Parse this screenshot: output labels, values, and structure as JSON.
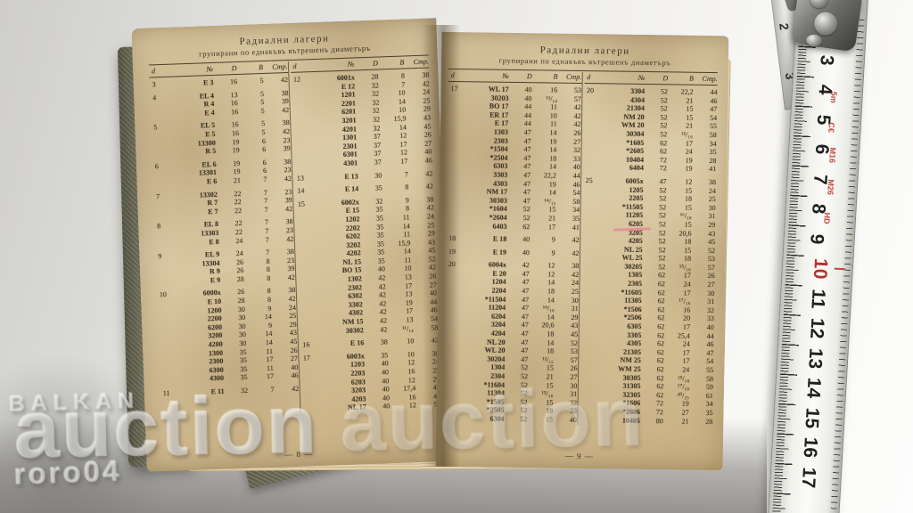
{
  "watermark": {
    "brand": "BALKAN",
    "word": "auction",
    "user": "roro04"
  },
  "pages": [
    {
      "title": "Радиални лагери",
      "subtitle": "групирани по еднакъвъ вътрешенъ диаметъръ",
      "columns": [
        "d",
        "№",
        "D",
        "B",
        "Стр."
      ],
      "page_number": "— 8 —",
      "left_rows": [
        [
          "3",
          "E 3",
          "16",
          "5",
          "42"
        ],
        [],
        [
          "4",
          "EL 4",
          "13",
          "5",
          "38"
        ],
        [
          "",
          "R 4",
          "16",
          "5",
          "39"
        ],
        [
          "",
          "E 4",
          "16",
          "5",
          "42"
        ],
        [],
        [
          "5",
          "EL 5",
          "16",
          "5",
          "38"
        ],
        [
          "",
          "E 5",
          "16",
          "5",
          "42"
        ],
        [
          "",
          "13300",
          "19",
          "6",
          "23"
        ],
        [
          "",
          "R 5",
          "19",
          "6",
          "39"
        ],
        [],
        [
          "6",
          "EL 6",
          "19",
          "6",
          "38"
        ],
        [
          "",
          "13301",
          "19",
          "6",
          "23"
        ],
        [
          "",
          "E 6",
          "21",
          "7",
          "42"
        ],
        [],
        [
          "7",
          "13302",
          "22",
          "7",
          "23"
        ],
        [
          "",
          "R 7",
          "22",
          "7",
          "39"
        ],
        [
          "",
          "E 7",
          "22",
          "7",
          "42"
        ],
        [],
        [
          "8",
          "EL 8",
          "22",
          "7",
          "38"
        ],
        [
          "",
          "13303",
          "22",
          "7",
          "23"
        ],
        [
          "",
          "E 8",
          "24",
          "7",
          "42"
        ],
        [],
        [
          "9",
          "EL 9",
          "24",
          "7",
          "38"
        ],
        [
          "",
          "13304",
          "26",
          "8",
          "23"
        ],
        [
          "",
          "R 9",
          "26",
          "8",
          "39"
        ],
        [
          "",
          "E 9",
          "28",
          "8",
          "42"
        ],
        [],
        [
          "10",
          "6000x",
          "26",
          "8",
          "38"
        ],
        [
          "",
          "E 10",
          "28",
          "8",
          "42"
        ],
        [
          "",
          "1200",
          "30",
          "9",
          "24"
        ],
        [
          "",
          "2200",
          "30",
          "14",
          "25"
        ],
        [
          "",
          "6200",
          "30",
          "9",
          "29"
        ],
        [
          "",
          "3200",
          "30",
          "14",
          "43"
        ],
        [
          "",
          "4200",
          "30",
          "14",
          "45"
        ],
        [
          "",
          "1300",
          "35",
          "11",
          "26"
        ],
        [
          "",
          "2300",
          "35",
          "17",
          "27"
        ],
        [
          "",
          "6300",
          "35",
          "11",
          "40"
        ],
        [
          "",
          "4300",
          "35",
          "17",
          "46"
        ],
        [],
        [
          "11",
          "E 11",
          "32",
          "7",
          "42"
        ]
      ],
      "right_rows": [
        [
          "12",
          "6001x",
          "28",
          "8",
          "38"
        ],
        [
          "",
          "E 12",
          "32",
          "7",
          "42"
        ],
        [
          "",
          "1201",
          "32",
          "10",
          "24"
        ],
        [
          "",
          "2201",
          "32",
          "14",
          "25"
        ],
        [
          "",
          "6201",
          "32",
          "10",
          "29"
        ],
        [
          "",
          "3201",
          "32",
          "15,9",
          "43"
        ],
        [
          "",
          "4201",
          "32",
          "14",
          "45"
        ],
        [
          "",
          "1301",
          "37",
          "12",
          "26"
        ],
        [
          "",
          "2301",
          "37",
          "17",
          "27"
        ],
        [
          "",
          "6301",
          "37",
          "12",
          "40"
        ],
        [
          "",
          "4301",
          "37",
          "17",
          "46"
        ],
        [],
        [
          "13",
          "E 13",
          "30",
          "7",
          "42"
        ],
        [],
        [
          "14",
          "E 14",
          "35",
          "8",
          "42"
        ],
        [],
        [
          "15",
          "6002x",
          "32",
          "9",
          "38"
        ],
        [
          "",
          "E 15",
          "35",
          "8",
          "42"
        ],
        [
          "",
          "1202",
          "35",
          "11",
          "24"
        ],
        [
          "",
          "2202",
          "35",
          "14",
          "25"
        ],
        [
          "",
          "6202",
          "35",
          "11",
          "29"
        ],
        [
          "",
          "3202",
          "35",
          "15,9",
          "43"
        ],
        [
          "",
          "4202",
          "35",
          "14",
          "45"
        ],
        [
          "",
          "NL 15",
          "35",
          "11",
          "52"
        ],
        [
          "",
          "BO 15",
          "40",
          "10",
          "42"
        ],
        [
          "",
          "1302",
          "42",
          "13",
          "26"
        ],
        [
          "",
          "2302",
          "42",
          "17",
          "27"
        ],
        [
          "",
          "6302",
          "42",
          "13",
          "40"
        ],
        [
          "",
          "3302",
          "42",
          "19",
          "44"
        ],
        [
          "",
          "4302",
          "42",
          "17",
          "46"
        ],
        [
          "",
          "NM 15",
          "42",
          "13",
          "54"
        ],
        [
          "",
          "30302",
          "42",
          "¹¹/₁₄",
          "58"
        ],
        [],
        [
          "16",
          "E 16",
          "38",
          "10",
          "42"
        ],
        [],
        [
          "17",
          "6003x",
          "35",
          "10",
          "38"
        ],
        [
          "",
          "1203",
          "40",
          "12",
          "24"
        ],
        [
          "",
          "2203",
          "40",
          "16",
          "25"
        ],
        [
          "",
          "6203",
          "40",
          "12",
          "29"
        ],
        [
          "",
          "3203",
          "40",
          "17,4",
          "43"
        ],
        [
          "",
          "4203",
          "40",
          "16",
          "45"
        ],
        [
          "",
          "NL 17",
          "40",
          "12",
          "52"
        ]
      ]
    },
    {
      "title": "Радиални лагери",
      "subtitle": "групирани по еднакъвъ вътрешенъ диаметъръ",
      "columns": [
        "d",
        "№",
        "D",
        "B",
        "Стр."
      ],
      "page_number": "— 9 —",
      "left_rows": [
        [
          "17",
          "WL 17",
          "40",
          "16",
          "53"
        ],
        [
          "",
          "30203",
          "40",
          "¹³/₁₄",
          "57"
        ],
        [
          "",
          "BO 17",
          "44",
          "11",
          "42"
        ],
        [
          "",
          "ER 17",
          "44",
          "10",
          "42"
        ],
        [
          "",
          "E 17",
          "44",
          "11",
          "42"
        ],
        [
          "",
          "1303",
          "47",
          "14",
          "26"
        ],
        [
          "",
          "2303",
          "47",
          "19",
          "27"
        ],
        [
          "",
          "*1504",
          "47",
          "14",
          "32"
        ],
        [
          "",
          "*2504",
          "47",
          "18",
          "33"
        ],
        [
          "",
          "6303",
          "47",
          "14",
          "40"
        ],
        [
          "",
          "3303",
          "47",
          "22,2",
          "44"
        ],
        [
          "",
          "4303",
          "47",
          "19",
          "46"
        ],
        [
          "",
          "NM 17",
          "47",
          "14",
          "54"
        ],
        [
          "",
          "30303",
          "47",
          "¹⁴/₁₅",
          "58"
        ],
        [
          "",
          "*1604",
          "52",
          "15",
          "34"
        ],
        [
          "",
          "*2604",
          "52",
          "21",
          "35"
        ],
        [
          "",
          "6403",
          "62",
          "17",
          "41"
        ],
        [],
        [
          "18",
          "E 18",
          "40",
          "9",
          "42"
        ],
        [],
        [
          "19",
          "E 19",
          "40",
          "9",
          "42"
        ],
        [],
        [
          "20",
          "6004x",
          "42",
          "12",
          "38"
        ],
        [
          "",
          "E 20",
          "47",
          "12",
          "42"
        ],
        [
          "",
          "1204",
          "47",
          "14",
          "24"
        ],
        [
          "",
          "2204",
          "47",
          "18",
          "25"
        ],
        [
          "",
          "*11504",
          "47",
          "14",
          "30"
        ],
        [
          "",
          "11204",
          "47",
          "¹⁴/₁₆",
          "31"
        ],
        [
          "",
          "6204",
          "47",
          "14",
          "29"
        ],
        [
          "",
          "3204",
          "47",
          "20,6",
          "43"
        ],
        [
          "",
          "4204",
          "47",
          "18",
          "45"
        ],
        [
          "",
          "NL 20",
          "47",
          "14",
          "52"
        ],
        [
          "",
          "WL 20",
          "47",
          "18",
          "53"
        ],
        [
          "",
          "30204",
          "47",
          "¹²/₁₅",
          "57"
        ],
        [
          "",
          "1304",
          "52",
          "15",
          "26"
        ],
        [
          "",
          "2304",
          "52",
          "21",
          "27"
        ],
        [
          "",
          "*11604",
          "52",
          "15",
          "30"
        ],
        [
          "",
          "11304",
          "52",
          "¹⁵/₁₆",
          "31"
        ],
        [
          "",
          "*1505",
          "52",
          "15",
          "32"
        ],
        [
          "",
          "*2505",
          "52",
          "18",
          "33"
        ],
        [
          "",
          "6304",
          "52",
          "15",
          "40"
        ]
      ],
      "right_rows": [
        [
          "20",
          "3304",
          "52",
          "22,2",
          "44"
        ],
        [
          "",
          "4304",
          "52",
          "21",
          "46"
        ],
        [
          "",
          "21304",
          "52",
          "15",
          "47"
        ],
        [
          "",
          "NM 20",
          "52",
          "15",
          "54"
        ],
        [
          "",
          "WM 20",
          "52",
          "21",
          "55"
        ],
        [
          "",
          "30304",
          "52",
          "¹⁵/₁₆",
          "58"
        ],
        [
          "",
          "*1605",
          "62",
          "17",
          "34"
        ],
        [
          "",
          "*2605",
          "62",
          "24",
          "35"
        ],
        [
          "",
          "10404",
          "72",
          "19",
          "28"
        ],
        [
          "",
          "6404",
          "72",
          "19",
          "41"
        ],
        [],
        [
          "25",
          "6005x",
          "47",
          "12",
          "38"
        ],
        [
          "",
          "1205",
          "52",
          "15",
          "24"
        ],
        [
          "",
          "2205",
          "52",
          "18",
          "25"
        ],
        [
          "",
          "*11505",
          "52",
          "15",
          "30"
        ],
        [
          "",
          "11205",
          "52",
          "¹⁶/₁₈",
          "31"
        ],
        [
          "",
          "6205",
          "52",
          "15",
          "29"
        ],
        [
          "",
          "3205",
          "52",
          "20,6",
          "43"
        ],
        [
          "",
          "4205",
          "52",
          "18",
          "45"
        ],
        [
          "",
          "NL 25",
          "52",
          "15",
          "52"
        ],
        [
          "",
          "WL 25",
          "52",
          "18",
          "53"
        ],
        [
          "",
          "30205",
          "52",
          "¹⁵/₁₆",
          "57"
        ],
        [
          "",
          "1305",
          "62",
          "17",
          "26"
        ],
        [
          "",
          "2305",
          "62",
          "24",
          "27"
        ],
        [
          "",
          "*11605",
          "62",
          "17",
          "30"
        ],
        [
          "",
          "11305",
          "62",
          "¹⁷/₁₈",
          "31"
        ],
        [
          "",
          "*1506",
          "62",
          "16",
          "32"
        ],
        [
          "",
          "*2506",
          "62",
          "20",
          "33"
        ],
        [
          "",
          "6305",
          "62",
          "17",
          "40"
        ],
        [
          "",
          "3305",
          "62",
          "25,4",
          "44"
        ],
        [
          "",
          "4305",
          "62",
          "24",
          "46"
        ],
        [
          "",
          "21305",
          "62",
          "17",
          "47"
        ],
        [
          "",
          "NM 25",
          "62",
          "17",
          "54"
        ],
        [
          "",
          "WM 25",
          "62",
          "24",
          "55"
        ],
        [
          "",
          "30305",
          "62",
          "¹⁵/₁₈",
          "58"
        ],
        [
          "",
          "31305",
          "62",
          "¹⁷/₁₈",
          "59"
        ],
        [
          "",
          "32305",
          "62",
          "²⁰/₂₅",
          "61"
        ],
        [
          "",
          "*1606",
          "72",
          "19",
          "34"
        ],
        [
          "",
          "*2606",
          "72",
          "27",
          "35"
        ],
        [
          "",
          "10405",
          "80",
          "21",
          "28"
        ]
      ]
    }
  ],
  "ruler": {
    "numbers": [
      "2",
      "3",
      "4",
      "5",
      "6",
      "7",
      "8",
      "9",
      "10",
      "11",
      "12",
      "13",
      "14",
      "15",
      "16",
      "17"
    ],
    "red_numbers": [
      "10"
    ],
    "side_numbers": [
      "2",
      "3"
    ],
    "marks": [
      {
        "text": "5m",
        "cm": 4.45
      },
      {
        "text": "C€",
        "cm": 5.45
      },
      {
        "text": "M16",
        "cm": 6.4
      },
      {
        "text": "M26",
        "cm": 7.45
      },
      {
        "text": "HD",
        "cm": 8.5
      }
    ]
  }
}
